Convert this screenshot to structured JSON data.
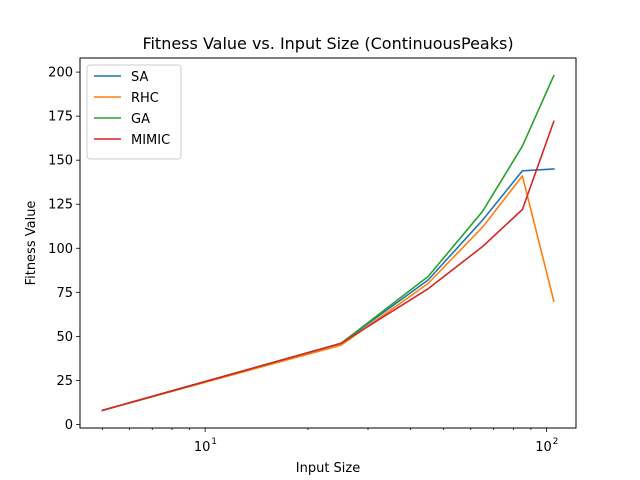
{
  "chart_data": {
    "type": "line",
    "title": "Fitness Value vs. Input Size (ContinuousPeaks)",
    "xlabel": "Input Size",
    "ylabel": "Fitness Value",
    "xscale": "log",
    "xlim": [
      4.3,
      122
    ],
    "ylim": [
      -2,
      208
    ],
    "x": [
      5,
      25,
      45,
      65,
      85,
      105
    ],
    "xticks": [
      {
        "value": 10,
        "base": "10",
        "exp": "1"
      },
      {
        "value": 100,
        "base": "10",
        "exp": "2"
      }
    ],
    "yticks": [
      0,
      25,
      50,
      75,
      100,
      125,
      150,
      175,
      200
    ],
    "legend_position": "top-left",
    "grid": false,
    "series": [
      {
        "name": "SA",
        "color": "#1f77b4",
        "values": [
          8,
          46,
          82,
          116,
          144,
          145
        ]
      },
      {
        "name": "RHC",
        "color": "#ff7f0e",
        "values": [
          8,
          45,
          80,
          112,
          141,
          70
        ]
      },
      {
        "name": "GA",
        "color": "#2ca02c",
        "values": [
          8,
          46,
          84,
          121,
          158,
          198
        ]
      },
      {
        "name": "MIMIC",
        "color": "#d62728",
        "values": [
          8,
          46,
          77,
          101,
          122,
          172
        ]
      }
    ]
  }
}
